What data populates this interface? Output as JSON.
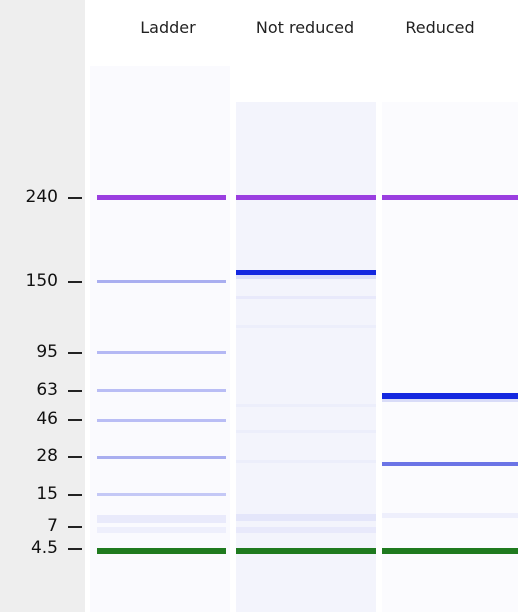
{
  "lanes": [
    {
      "label": "Ladder",
      "bands": [
        {
          "marker": "240",
          "color": "#9a3ee0",
          "intensity": 1.0
        },
        {
          "marker": "150",
          "color": "#a9aef0",
          "intensity": 0.7
        },
        {
          "marker": "95",
          "color": "#b4b8f4",
          "intensity": 0.6
        },
        {
          "marker": "63",
          "color": "#b4b8f4",
          "intensity": 0.55
        },
        {
          "marker": "46",
          "color": "#b4b8f4",
          "intensity": 0.55
        },
        {
          "marker": "28",
          "color": "#a9aef0",
          "intensity": 0.65
        },
        {
          "marker": "15",
          "color": "#c4c8f6",
          "intensity": 0.5
        },
        {
          "marker": "4.5",
          "color": "#1f7a1f",
          "intensity": 1.0
        }
      ]
    },
    {
      "label": "Not reduced",
      "bands": [
        {
          "marker": "240",
          "color": "#9a3ee0",
          "intensity": 1.0
        },
        {
          "marker": "~160",
          "color": "#1428e0",
          "intensity": 1.0
        },
        {
          "marker": "4.5",
          "color": "#1f7a1f",
          "intensity": 1.0
        }
      ]
    },
    {
      "label": "Reduced",
      "bands": [
        {
          "marker": "240",
          "color": "#9a3ee0",
          "intensity": 1.0
        },
        {
          "marker": "~60",
          "color": "#1428e0",
          "intensity": 1.0
        },
        {
          "marker": "~26",
          "color": "#6b74e6",
          "intensity": 0.8
        },
        {
          "marker": "4.5",
          "color": "#1f7a1f",
          "intensity": 1.0
        }
      ]
    }
  ],
  "markers": [
    "240",
    "150",
    "95",
    "63",
    "46",
    "28",
    "15",
    "7",
    "4.5"
  ],
  "colors": {
    "margin": "#eeeeee",
    "lane_bg": "#f7f7fd",
    "upper_marker": "#9a3ee0",
    "lower_marker": "#1f7a1f"
  }
}
